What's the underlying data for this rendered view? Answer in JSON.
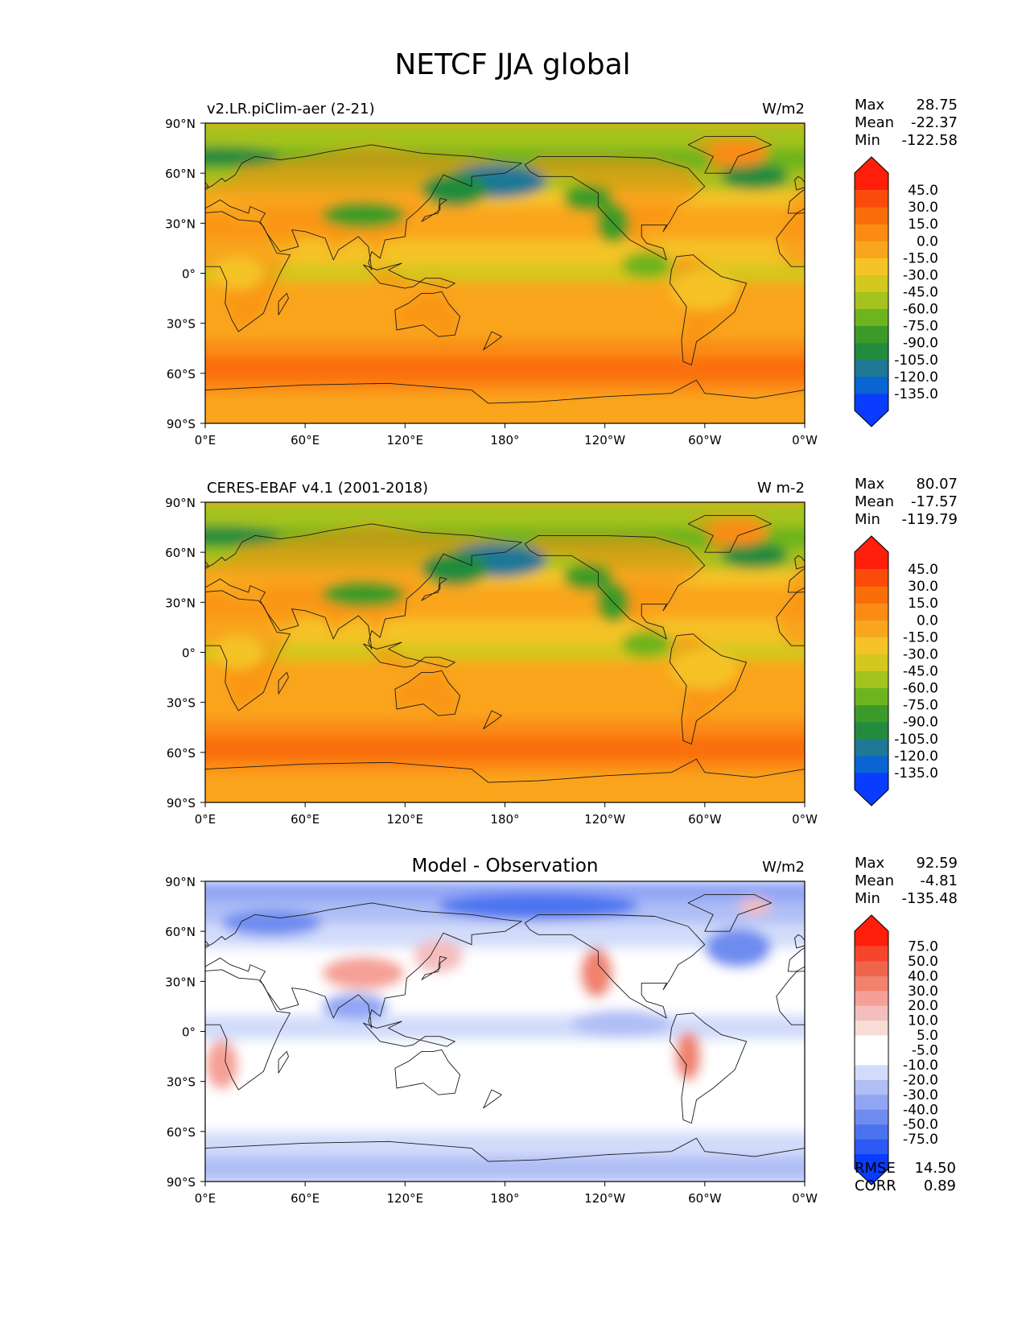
{
  "figure": {
    "title": "NETCF JJA global"
  },
  "lat_ticks": [
    "90°N",
    "60°N",
    "30°N",
    "0°",
    "30°S",
    "60°S",
    "90°S"
  ],
  "lon_ticks": [
    "0°E",
    "60°E",
    "120°E",
    "180°",
    "120°W",
    "60°W",
    "0°W"
  ],
  "panels": [
    {
      "id": "model",
      "left_title": "v2.LR.piClim-aer (2-21)",
      "center_title": "",
      "units": "W/m2",
      "stats": [
        {
          "label": "Max",
          "value": "28.75"
        },
        {
          "label": "Mean",
          "value": "-22.37"
        },
        {
          "label": "Min",
          "value": "-122.58"
        }
      ],
      "colorbar": {
        "labels": [
          "45.0",
          "30.0",
          "15.0",
          "0.0",
          "-15.0",
          "-30.0",
          "-45.0",
          "-60.0",
          "-75.0",
          "-90.0",
          "-105.0",
          "-120.0",
          "-135.0"
        ],
        "colors": [
          "#0a3cff",
          "#0a64d2",
          "#1e7896",
          "#238c3c",
          "#3c9b28",
          "#6eb41e",
          "#a5c31e",
          "#d2c81e",
          "#f5c328",
          "#faa51e",
          "#fa8c14",
          "#fa6e0a",
          "#fa4b0a",
          "#ff1e0a"
        ]
      },
      "secondary_stats": []
    },
    {
      "id": "obs",
      "left_title": "CERES-EBAF v4.1 (2001-2018)",
      "center_title": "",
      "units": "W m-2",
      "stats": [
        {
          "label": "Max",
          "value": "80.07"
        },
        {
          "label": "Mean",
          "value": "-17.57"
        },
        {
          "label": "Min",
          "value": "-119.79"
        }
      ],
      "colorbar": {
        "labels": [
          "45.0",
          "30.0",
          "15.0",
          "0.0",
          "-15.0",
          "-30.0",
          "-45.0",
          "-60.0",
          "-75.0",
          "-90.0",
          "-105.0",
          "-120.0",
          "-135.0"
        ],
        "colors": [
          "#0a3cff",
          "#0a64d2",
          "#1e7896",
          "#238c3c",
          "#3c9b28",
          "#6eb41e",
          "#a5c31e",
          "#d2c81e",
          "#f5c328",
          "#faa51e",
          "#fa8c14",
          "#fa6e0a",
          "#fa4b0a",
          "#ff1e0a"
        ]
      },
      "secondary_stats": []
    },
    {
      "id": "diff",
      "left_title": "",
      "center_title": "Model - Observation",
      "units": "W/m2",
      "stats": [
        {
          "label": "Max",
          "value": "92.59"
        },
        {
          "label": "Mean",
          "value": "-4.81"
        },
        {
          "label": "Min",
          "value": "-135.48"
        }
      ],
      "colorbar": {
        "labels": [
          "75.0",
          "50.0",
          "40.0",
          "30.0",
          "20.0",
          "10.0",
          "5.0",
          "-5.0",
          "-10.0",
          "-20.0",
          "-30.0",
          "-40.0",
          "-50.0",
          "-75.0"
        ],
        "colors": [
          "#0a3cff",
          "#2d5af5",
          "#4b73f0",
          "#6e8cf0",
          "#91a5f5",
          "#afbef5",
          "#d2dcfa",
          "#ffffff",
          "#ffffff",
          "#fadcd7",
          "#f5bebe",
          "#f5a096",
          "#f0826e",
          "#f0644b",
          "#f5462d",
          "#ff1e0a"
        ]
      },
      "secondary_stats": [
        {
          "label": "RMSE",
          "value": "14.50"
        },
        {
          "label": "CORR",
          "value": "0.89"
        }
      ]
    }
  ],
  "chart_data": [
    {
      "type": "heatmap",
      "title": "v2.LR.piClim-aer (2-21)",
      "units": "W/m2",
      "xlim": [
        0,
        360
      ],
      "ylim": [
        -90,
        90
      ],
      "stats": {
        "max": 28.75,
        "mean": -22.37,
        "min": -122.58
      },
      "levels": [
        -135,
        -120,
        -105,
        -90,
        -75,
        -60,
        -45,
        -30,
        -15,
        0,
        15,
        30,
        45
      ],
      "grid": false,
      "legend": "right"
    },
    {
      "type": "heatmap",
      "title": "CERES-EBAF v4.1 (2001-2018)",
      "units": "W m-2",
      "xlim": [
        0,
        360
      ],
      "ylim": [
        -90,
        90
      ],
      "stats": {
        "max": 80.07,
        "mean": -17.57,
        "min": -119.79
      },
      "levels": [
        -135,
        -120,
        -105,
        -90,
        -75,
        -60,
        -45,
        -30,
        -15,
        0,
        15,
        30,
        45
      ],
      "grid": false,
      "legend": "right"
    },
    {
      "type": "heatmap",
      "title": "Model - Observation",
      "units": "W/m2",
      "xlim": [
        0,
        360
      ],
      "ylim": [
        -90,
        90
      ],
      "stats": {
        "max": 92.59,
        "mean": -4.81,
        "min": -135.48,
        "rmse": 14.5,
        "corr": 0.89
      },
      "levels": [
        -75,
        -50,
        -40,
        -30,
        -20,
        -10,
        -5,
        5,
        10,
        20,
        30,
        40,
        50,
        75
      ],
      "grid": false,
      "legend": "right"
    }
  ]
}
